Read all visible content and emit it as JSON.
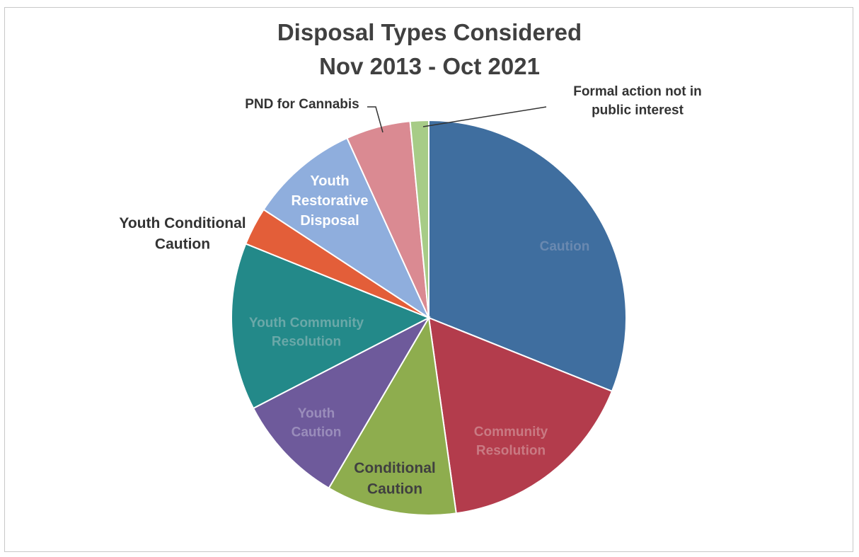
{
  "chart_data": {
    "type": "pie",
    "title": "Disposal Types Considered",
    "subtitle": "Nov 2013 - Oct 2021",
    "slices": [
      {
        "label": "Caution",
        "value": 32.9,
        "color": "#3f6e9f",
        "label_color": "#6a89b0"
      },
      {
        "label": "Community Resolution",
        "value": 17.7,
        "color": "#b33c4c",
        "label_color": "#c97a83"
      },
      {
        "label": "Conditional Caution",
        "value": 11.3,
        "color": "#8ead4e",
        "label_color": "#404040"
      },
      {
        "label": "Youth Caution",
        "value": 9.5,
        "color": "#6e5a9b",
        "label_color": "#9a8dbb"
      },
      {
        "label": "Youth Community Resolution",
        "value": 14.5,
        "color": "#238989",
        "label_color": "#6aa8a8"
      },
      {
        "label": "Youth Conditional Caution",
        "value": 3.3,
        "color": "#e35e39",
        "label_color": "#333333"
      },
      {
        "label": "Youth Restorative Disposal",
        "value": 9.5,
        "color": "#8faedd",
        "label_color": "#ffffff"
      },
      {
        "label": "PND for Cannabis",
        "value": 5.6,
        "color": "#da8a92",
        "label_color": "#333333"
      },
      {
        "label": "Formal action not in public interest",
        "value": 1.6,
        "color": "#a7cc87",
        "label_color": "#333333"
      }
    ],
    "legend": "none"
  }
}
